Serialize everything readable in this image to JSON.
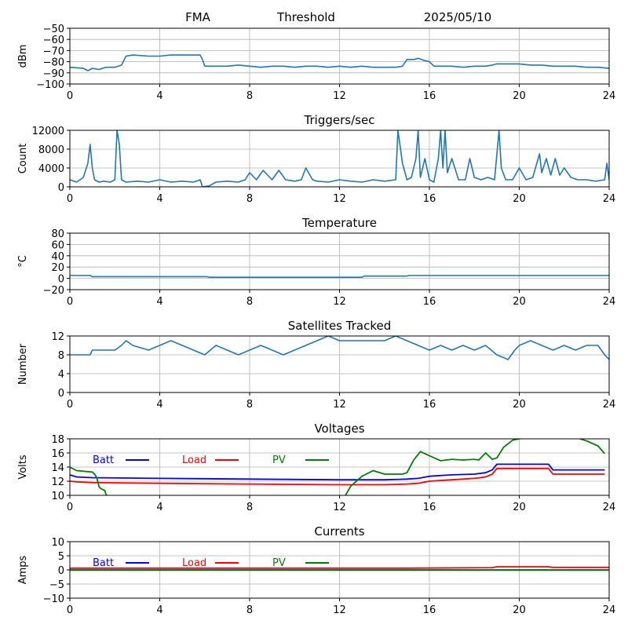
{
  "header": {
    "left": "FMA",
    "center": "Threshold",
    "right": "2025/05/10"
  },
  "colors": {
    "series_default": "#1f77b4",
    "batt": "#0000ff",
    "load": "#ff0000",
    "pv": "#008000",
    "grid": "#b0b0b0"
  },
  "chart_data": [
    {
      "id": "threshold",
      "type": "line",
      "title": "",
      "ylabel": "dBm",
      "xlim": [
        0,
        24
      ],
      "ylim": [
        -100,
        -50
      ],
      "xticks": [
        0,
        4,
        8,
        12,
        16,
        20,
        24
      ],
      "yticks": [
        -100,
        -90,
        -80,
        -70,
        -60,
        -50
      ],
      "grid": true,
      "series": [
        {
          "x": [
            0,
            0.6,
            0.8,
            1.0,
            1.3,
            1.6,
            2.0,
            2.3,
            2.5,
            2.8,
            3.5,
            4.0,
            4.5,
            5.0,
            5.8,
            5.9,
            6.0,
            7.0,
            7.5,
            8.0,
            8.5,
            9.0,
            9.5,
            10.0,
            10.5,
            11.0,
            11.5,
            12.0,
            12.5,
            13.0,
            13.5,
            14.0,
            14.5,
            14.8,
            15.0,
            15.3,
            15.5,
            15.8,
            16.0,
            16.2,
            16.5,
            17.0,
            17.5,
            18.0,
            18.5,
            18.8,
            19.0,
            19.5,
            20.0,
            20.5,
            21.0,
            21.5,
            22.0,
            22.5,
            23.0,
            23.5,
            24.0
          ],
          "y": [
            -85,
            -86,
            -88,
            -86,
            -87,
            -85,
            -85,
            -83,
            -75,
            -74,
            -75,
            -75,
            -74,
            -74,
            -74,
            -78,
            -84,
            -84,
            -83,
            -84,
            -85,
            -84,
            -84,
            -85,
            -84,
            -84,
            -85,
            -84,
            -85,
            -84,
            -85,
            -85,
            -85,
            -84,
            -78,
            -78,
            -77,
            -79,
            -80,
            -84,
            -84,
            -84,
            -85,
            -84,
            -84,
            -83,
            -82,
            -82,
            -82,
            -83,
            -83,
            -84,
            -84,
            -84,
            -85,
            -85,
            -86
          ]
        }
      ]
    },
    {
      "id": "triggers",
      "type": "line",
      "title": "Triggers/sec",
      "ylabel": "Count",
      "xlim": [
        0,
        24
      ],
      "ylim": [
        0,
        12000
      ],
      "xticks": [
        0,
        4,
        8,
        12,
        16,
        20,
        24
      ],
      "yticks": [
        0,
        4000,
        8000,
        12000
      ],
      "grid": true,
      "series": [
        {
          "x": [
            0,
            0.3,
            0.6,
            0.8,
            0.9,
            1.0,
            1.1,
            1.3,
            1.5,
            1.8,
            2.0,
            2.1,
            2.2,
            2.3,
            2.5,
            3.0,
            3.5,
            4.0,
            4.5,
            5.0,
            5.5,
            5.8,
            5.9,
            6.2,
            6.5,
            7.0,
            7.5,
            7.8,
            8.0,
            8.3,
            8.6,
            9.0,
            9.3,
            9.6,
            10.0,
            10.3,
            10.5,
            10.8,
            11.0,
            11.5,
            12.0,
            12.5,
            13.0,
            13.5,
            14.0,
            14.5,
            14.6,
            14.8,
            15.0,
            15.2,
            15.4,
            15.5,
            15.6,
            15.8,
            16.0,
            16.2,
            16.4,
            16.5,
            16.6,
            16.7,
            16.8,
            17.0,
            17.3,
            17.6,
            17.8,
            18.0,
            18.3,
            18.6,
            18.9,
            19.1,
            19.2,
            19.4,
            19.7,
            20.0,
            20.3,
            20.6,
            20.9,
            21.0,
            21.2,
            21.4,
            21.6,
            21.8,
            22.0,
            22.3,
            22.6,
            23.0,
            23.4,
            23.8,
            23.9,
            24.0
          ],
          "y": [
            1500,
            1000,
            2000,
            5000,
            9000,
            4000,
            1500,
            1000,
            1200,
            1000,
            1500,
            12000,
            9000,
            1500,
            1000,
            1200,
            1000,
            1500,
            1000,
            1200,
            1000,
            1500,
            0,
            200,
            1000,
            1200,
            1000,
            1500,
            3000,
            1500,
            3500,
            1500,
            3500,
            1500,
            1200,
            1500,
            4000,
            1500,
            1200,
            1000,
            1500,
            1200,
            1000,
            1500,
            1200,
            1500,
            12000,
            5000,
            1500,
            2000,
            6000,
            12000,
            2000,
            6000,
            1500,
            1000,
            6000,
            12000,
            4000,
            12000,
            3000,
            6000,
            1500,
            1500,
            6000,
            2000,
            1500,
            2000,
            1500,
            12000,
            4000,
            1500,
            1500,
            4000,
            1500,
            2000,
            7000,
            3000,
            6000,
            2500,
            6000,
            2500,
            4000,
            2000,
            1500,
            1500,
            1200,
            1500,
            5000,
            1500
          ]
        }
      ]
    },
    {
      "id": "temperature",
      "type": "line",
      "title": "Temperature",
      "ylabel": "°C",
      "xlim": [
        0,
        24
      ],
      "ylim": [
        -20,
        80
      ],
      "xticks": [
        0,
        4,
        8,
        12,
        16,
        20,
        24
      ],
      "yticks": [
        -20,
        0,
        20,
        40,
        60,
        80
      ],
      "grid": true,
      "series": [
        {
          "x": [
            0,
            0.9,
            1.0,
            6.1,
            6.2,
            13.0,
            13.1,
            15.0,
            15.1,
            24.0
          ],
          "y": [
            5,
            5,
            3,
            3,
            2,
            2,
            4,
            4,
            5,
            5
          ]
        }
      ]
    },
    {
      "id": "satellites",
      "type": "line",
      "title": "Satellites Tracked",
      "ylabel": "Number",
      "xlim": [
        0,
        24
      ],
      "ylim": [
        0,
        12
      ],
      "xticks": [
        0,
        4,
        8,
        12,
        16,
        20,
        24
      ],
      "yticks": [
        0,
        4,
        8,
        12
      ],
      "grid": true,
      "series": [
        {
          "x": [
            0,
            0.9,
            1.0,
            2.0,
            2.3,
            2.5,
            2.8,
            3.5,
            4.0,
            4.5,
            5.0,
            5.5,
            6.0,
            6.5,
            7.0,
            7.5,
            8.0,
            8.5,
            9.0,
            9.5,
            10.0,
            10.5,
            11.0,
            11.5,
            12.0,
            12.5,
            13.0,
            13.5,
            14.0,
            14.5,
            15.0,
            15.5,
            16.0,
            16.5,
            17.0,
            17.5,
            18.0,
            18.5,
            19.0,
            19.5,
            19.8,
            20.0,
            20.5,
            21.0,
            21.5,
            22.0,
            22.5,
            23.0,
            23.5,
            23.8,
            24.0
          ],
          "y": [
            8,
            8,
            9,
            9,
            10,
            11,
            10,
            9,
            10,
            11,
            10,
            9,
            8,
            10,
            9,
            8,
            9,
            10,
            9,
            8,
            9,
            10,
            11,
            12,
            11,
            11,
            11,
            11,
            11,
            12,
            11,
            10,
            9,
            10,
            9,
            10,
            9,
            10,
            8,
            7,
            9,
            10,
            11,
            10,
            9,
            10,
            9,
            10,
            10,
            8,
            7
          ]
        }
      ]
    },
    {
      "id": "voltages",
      "type": "line",
      "title": "Voltages",
      "ylabel": "Volts",
      "xlim": [
        0,
        24
      ],
      "ylim": [
        10,
        18
      ],
      "xticks": [
        0,
        4,
        8,
        12,
        16,
        20,
        24
      ],
      "yticks": [
        10,
        12,
        14,
        16,
        18
      ],
      "grid": true,
      "legend": [
        "Batt",
        "Load",
        "PV"
      ],
      "series": [
        {
          "name": "Batt",
          "x": [
            0,
            0.3,
            1.0,
            4.0,
            8.0,
            12.0,
            14.0,
            15.0,
            15.5,
            16.0,
            17.0,
            18.0,
            18.5,
            18.8,
            19.0,
            20.0,
            21.0,
            21.3,
            21.5,
            22.0,
            23.0,
            23.8
          ],
          "y": [
            12.9,
            12.6,
            12.5,
            12.4,
            12.3,
            12.2,
            12.2,
            12.3,
            12.4,
            12.7,
            12.9,
            13.0,
            13.2,
            13.6,
            14.4,
            14.4,
            14.4,
            14.4,
            13.6,
            13.6,
            13.6,
            13.6
          ]
        },
        {
          "name": "Load",
          "x": [
            0,
            0.3,
            1.0,
            4.0,
            8.0,
            12.0,
            14.0,
            15.0,
            15.5,
            16.0,
            17.0,
            18.0,
            18.5,
            18.8,
            19.0,
            20.0,
            21.0,
            21.3,
            21.5,
            22.0,
            23.0,
            23.8
          ],
          "y": [
            12.0,
            11.9,
            11.8,
            11.7,
            11.6,
            11.5,
            11.5,
            11.6,
            11.7,
            12.0,
            12.2,
            12.4,
            12.6,
            13.0,
            13.8,
            13.8,
            13.8,
            13.8,
            13.0,
            13.0,
            13.0,
            13.0
          ]
        },
        {
          "name": "PV",
          "x": [
            0,
            0.3,
            1.0,
            1.1,
            1.2,
            1.3,
            1.4,
            1.55,
            1.6,
            1.7,
            12.2,
            12.3,
            12.5,
            13.0,
            13.5,
            14.0,
            14.5,
            14.8,
            15.0,
            15.3,
            15.6,
            16.0,
            16.5,
            17.0,
            17.5,
            18.0,
            18.2,
            18.5,
            18.8,
            19.0,
            19.3,
            19.7,
            20.0,
            20.5,
            21.0,
            22.0,
            22.5,
            23.0,
            23.5,
            23.8
          ],
          "y": [
            14.0,
            13.5,
            13.3,
            13.0,
            12.5,
            11.2,
            10.9,
            10.7,
            10.2,
            9.6,
            9.6,
            10.2,
            11.3,
            12.7,
            13.5,
            13.0,
            13.0,
            13.0,
            13.2,
            15.0,
            16.2,
            15.6,
            14.9,
            15.1,
            15.0,
            15.1,
            15.0,
            16.0,
            15.1,
            15.3,
            16.8,
            17.8,
            18.0,
            18.3,
            18.5,
            18.5,
            18.2,
            17.7,
            17.0,
            15.9
          ]
        }
      ]
    },
    {
      "id": "currents",
      "type": "line",
      "title": "Currents",
      "ylabel": "Amps",
      "xlim": [
        0,
        24
      ],
      "ylim": [
        -10,
        10
      ],
      "xticks": [
        0,
        4,
        8,
        12,
        16,
        20,
        24
      ],
      "yticks": [
        -10,
        -5,
        0,
        5,
        10
      ],
      "grid": true,
      "legend": [
        "Batt",
        "Load",
        "PV"
      ],
      "series": [
        {
          "name": "Batt",
          "x": [
            0,
            24
          ],
          "y": [
            0.0,
            0.0
          ]
        },
        {
          "name": "Load",
          "x": [
            0,
            15,
            18.8,
            19.0,
            21.3,
            21.5,
            24
          ],
          "y": [
            0.6,
            0.6,
            0.8,
            1.1,
            1.1,
            0.9,
            0.9
          ]
        },
        {
          "name": "PV",
          "x": [
            0,
            24
          ],
          "y": [
            -0.1,
            -0.1
          ]
        }
      ]
    }
  ]
}
